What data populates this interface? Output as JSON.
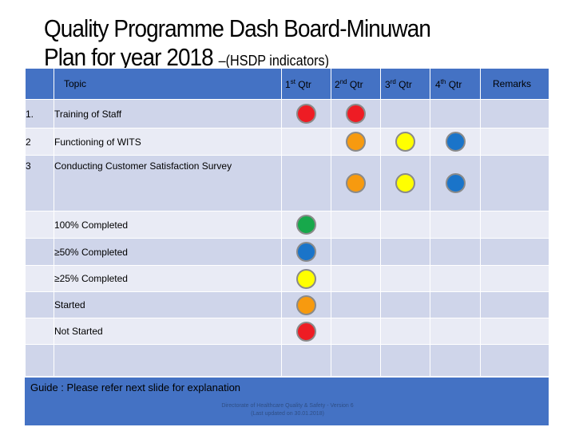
{
  "title": {
    "line1": "Quality Programme Dash Board-Minuwan",
    "line2": "Plan for year 2018",
    "subtitle": "–(HSDP indicators)"
  },
  "table": {
    "headers": {
      "topic": "Topic",
      "q1": "1",
      "q1_sup": "st",
      "q1_suffix": " Qtr",
      "q2": "2",
      "q2_sup": "nd",
      "q2_suffix": " Qtr",
      "q3": "3",
      "q3_sup": "rd",
      "q3_suffix": " Qtr",
      "q4": "4",
      "q4_sup": "th",
      "q4_suffix": " Qtr",
      "remarks": "Remarks"
    },
    "rows": [
      {
        "num": "1.",
        "topic": "Training of Staff",
        "q1": "red",
        "q2": "red",
        "q3": "",
        "q4": ""
      },
      {
        "num": "2",
        "topic": "Functioning of WITS",
        "q1": "",
        "q2": "orange",
        "q3": "yellow",
        "q4": "blue"
      },
      {
        "num": "3",
        "topic": "Conducting Customer Satisfaction Survey",
        "q1": "",
        "q2": "orange",
        "q3": "yellow",
        "q4": "blue"
      }
    ],
    "legend": [
      {
        "label": "100% Completed",
        "color": "green"
      },
      {
        "label": "≥50% Completed",
        "color": "blue"
      },
      {
        "label": "≥25% Completed",
        "color": "yellow"
      },
      {
        "label": "Started",
        "color": "orange"
      },
      {
        "label": "Not Started",
        "color": "red"
      }
    ]
  },
  "colors": {
    "red": "#ee1c24",
    "orange": "#f79a0f",
    "yellow": "#ffff00",
    "blue": "#1a74c9",
    "green": "#17a84b",
    "header_bg": "#4472c4",
    "row_dark": "#cfd5ea",
    "row_light": "#e9ebf5"
  },
  "guide": {
    "text": "Guide : Please refer next slide for explanation"
  },
  "footer": {
    "line1": "Directorate of Healthcare Quality & Safety - Version 6",
    "line2": "(Last updated on 30.01.2018)"
  }
}
